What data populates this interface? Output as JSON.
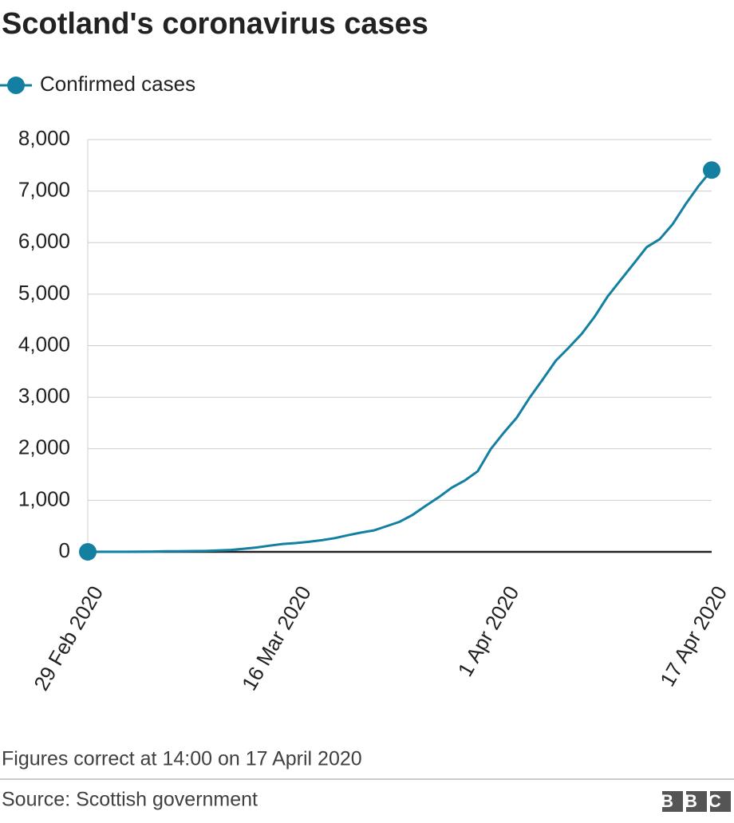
{
  "chart_data": {
    "type": "line",
    "title": "Scotland's coronavirus cases",
    "categories": [
      "29 Feb 2020",
      null,
      null,
      null,
      null,
      null,
      null,
      null,
      null,
      null,
      null,
      null,
      null,
      null,
      null,
      null,
      "16 Mar 2020",
      null,
      null,
      null,
      null,
      null,
      null,
      null,
      null,
      null,
      null,
      null,
      null,
      null,
      null,
      null,
      "1 Apr 2020",
      null,
      null,
      null,
      null,
      null,
      null,
      null,
      null,
      null,
      null,
      null,
      null,
      null,
      null,
      null,
      "17 Apr 2020"
    ],
    "series": [
      {
        "name": "Confirmed cases",
        "color": "#1380a1",
        "values": [
          0,
          1,
          1,
          1,
          3,
          6,
          11,
          11,
          16,
          18,
          27,
          36,
          60,
          85,
          121,
          153,
          171,
          195,
          227,
          266,
          322,
          373,
          416,
          499,
          584,
          719,
          894,
          1059,
          1245,
          1384,
          1563,
          1993,
          2310,
          2602,
          2993,
          3345,
          3706,
          3961,
          4229,
          4565,
          4957,
          5275,
          5590,
          5912,
          6067,
          6358,
          6748,
          7102,
          7408
        ]
      }
    ],
    "ylim": [
      0,
      8000
    ],
    "yticks": [
      0,
      {
        "value": 1000,
        "label": "1,000"
      },
      {
        "value": 2000,
        "label": "2,000"
      },
      {
        "value": 3000,
        "label": "3,000"
      },
      {
        "value": 4000,
        "label": "4,000"
      },
      {
        "value": 5000,
        "label": "5,000"
      },
      {
        "value": 6000,
        "label": "6,000"
      },
      {
        "value": 7000,
        "label": "7,000"
      },
      {
        "value": 8000,
        "label": "8,000"
      }
    ],
    "grid": true,
    "footnote": "Figures correct at 14:00 on 17 April 2020",
    "source": "Source: Scottish government",
    "logo": "BBC"
  }
}
